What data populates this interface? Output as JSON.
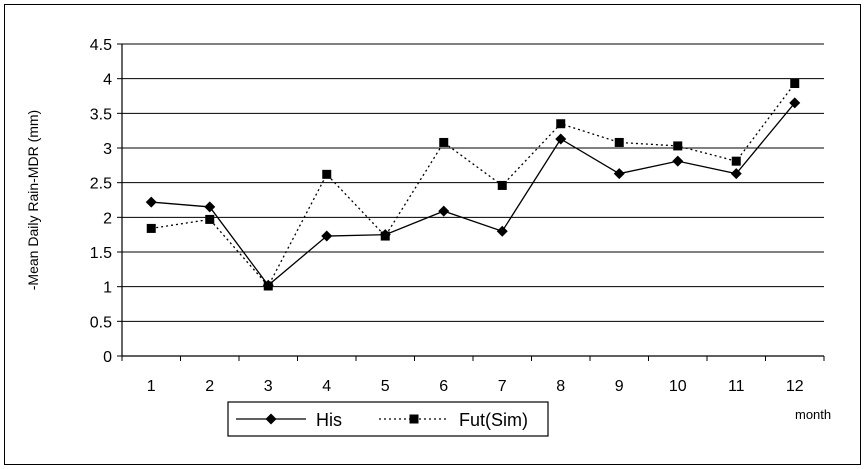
{
  "chart_data": {
    "type": "line",
    "categories": [
      "1",
      "2",
      "3",
      "4",
      "5",
      "6",
      "7",
      "8",
      "9",
      "10",
      "11",
      "12"
    ],
    "series": [
      {
        "name": "His",
        "values": [
          2.22,
          2.15,
          1.02,
          1.73,
          1.75,
          2.09,
          1.8,
          3.13,
          2.63,
          2.81,
          2.63,
          3.65
        ],
        "line_style": "solid",
        "marker": "diamond",
        "color": "#000000"
      },
      {
        "name": "Fut(Sim)",
        "values": [
          1.84,
          1.97,
          1.01,
          2.62,
          1.73,
          3.08,
          2.46,
          3.35,
          3.08,
          3.03,
          2.81,
          3.93
        ],
        "line_style": "dotted",
        "marker": "square",
        "color": "#000000"
      }
    ],
    "title": "",
    "xlabel": "month",
    "ylabel": "-Mean Daily Rain-MDR (mm)",
    "ylim": [
      0,
      4.5
    ],
    "yticks": [
      "0",
      "0.5",
      "1",
      "1.5",
      "2",
      "2.5",
      "3",
      "3.5",
      "4",
      "4.5"
    ],
    "grid": "horizontal",
    "legend_position": "bottom-left"
  }
}
